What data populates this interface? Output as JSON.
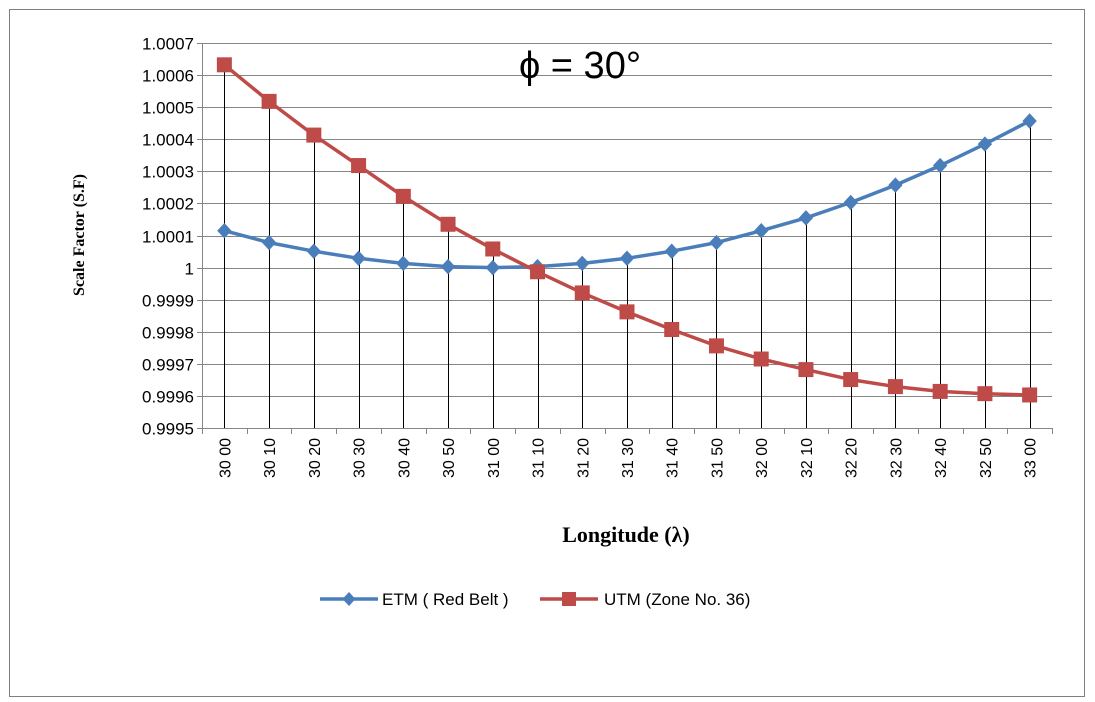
{
  "chart_data": {
    "type": "line",
    "title": "ϕ = 30°",
    "xlabel": "Longitude (λ)",
    "ylabel": "Scale Factor (S.F)",
    "categories": [
      "30 00",
      "30 10",
      "30 20",
      "30 30",
      "30 40",
      "30 50",
      "31 00",
      "31 10",
      "31 20",
      "31 30",
      "31 40",
      "31 50",
      "32 00",
      "32 10",
      "32 20",
      "32 30",
      "32 40",
      "32 50",
      "33 00"
    ],
    "ylim": [
      0.9995,
      1.0007
    ],
    "yticks": [
      "1.0007",
      "1.0006",
      "1.0005",
      "1.0004",
      "1.0003",
      "1.0002",
      "1.0001",
      "1",
      "0.9999",
      "0.9998",
      "0.9997",
      "0.9996",
      "0.9995"
    ],
    "grid": true,
    "legend_position": "bottom",
    "series": [
      {
        "name": "ETM ( Red Belt )",
        "color": "#4a7ebb",
        "marker": "diamond",
        "values": [
          1.000115,
          1.000078,
          1.000051,
          1.000029,
          1.000013,
          1.000003,
          1.0,
          1.000003,
          1.000013,
          1.000029,
          1.000051,
          1.000078,
          1.000115,
          1.000155,
          1.000203,
          1.000257,
          1.000318,
          1.000385,
          1.000457
        ]
      },
      {
        "name": "UTM (Zone No. 36)",
        "color": "#be4b48",
        "marker": "square",
        "values": [
          1.000632,
          1.000518,
          1.000413,
          1.000318,
          1.000222,
          1.000135,
          1.000058,
          0.999987,
          0.999921,
          0.999862,
          0.999807,
          0.999756,
          0.999715,
          0.999682,
          0.999651,
          0.999629,
          0.999614,
          0.999607,
          0.999603
        ]
      }
    ]
  }
}
